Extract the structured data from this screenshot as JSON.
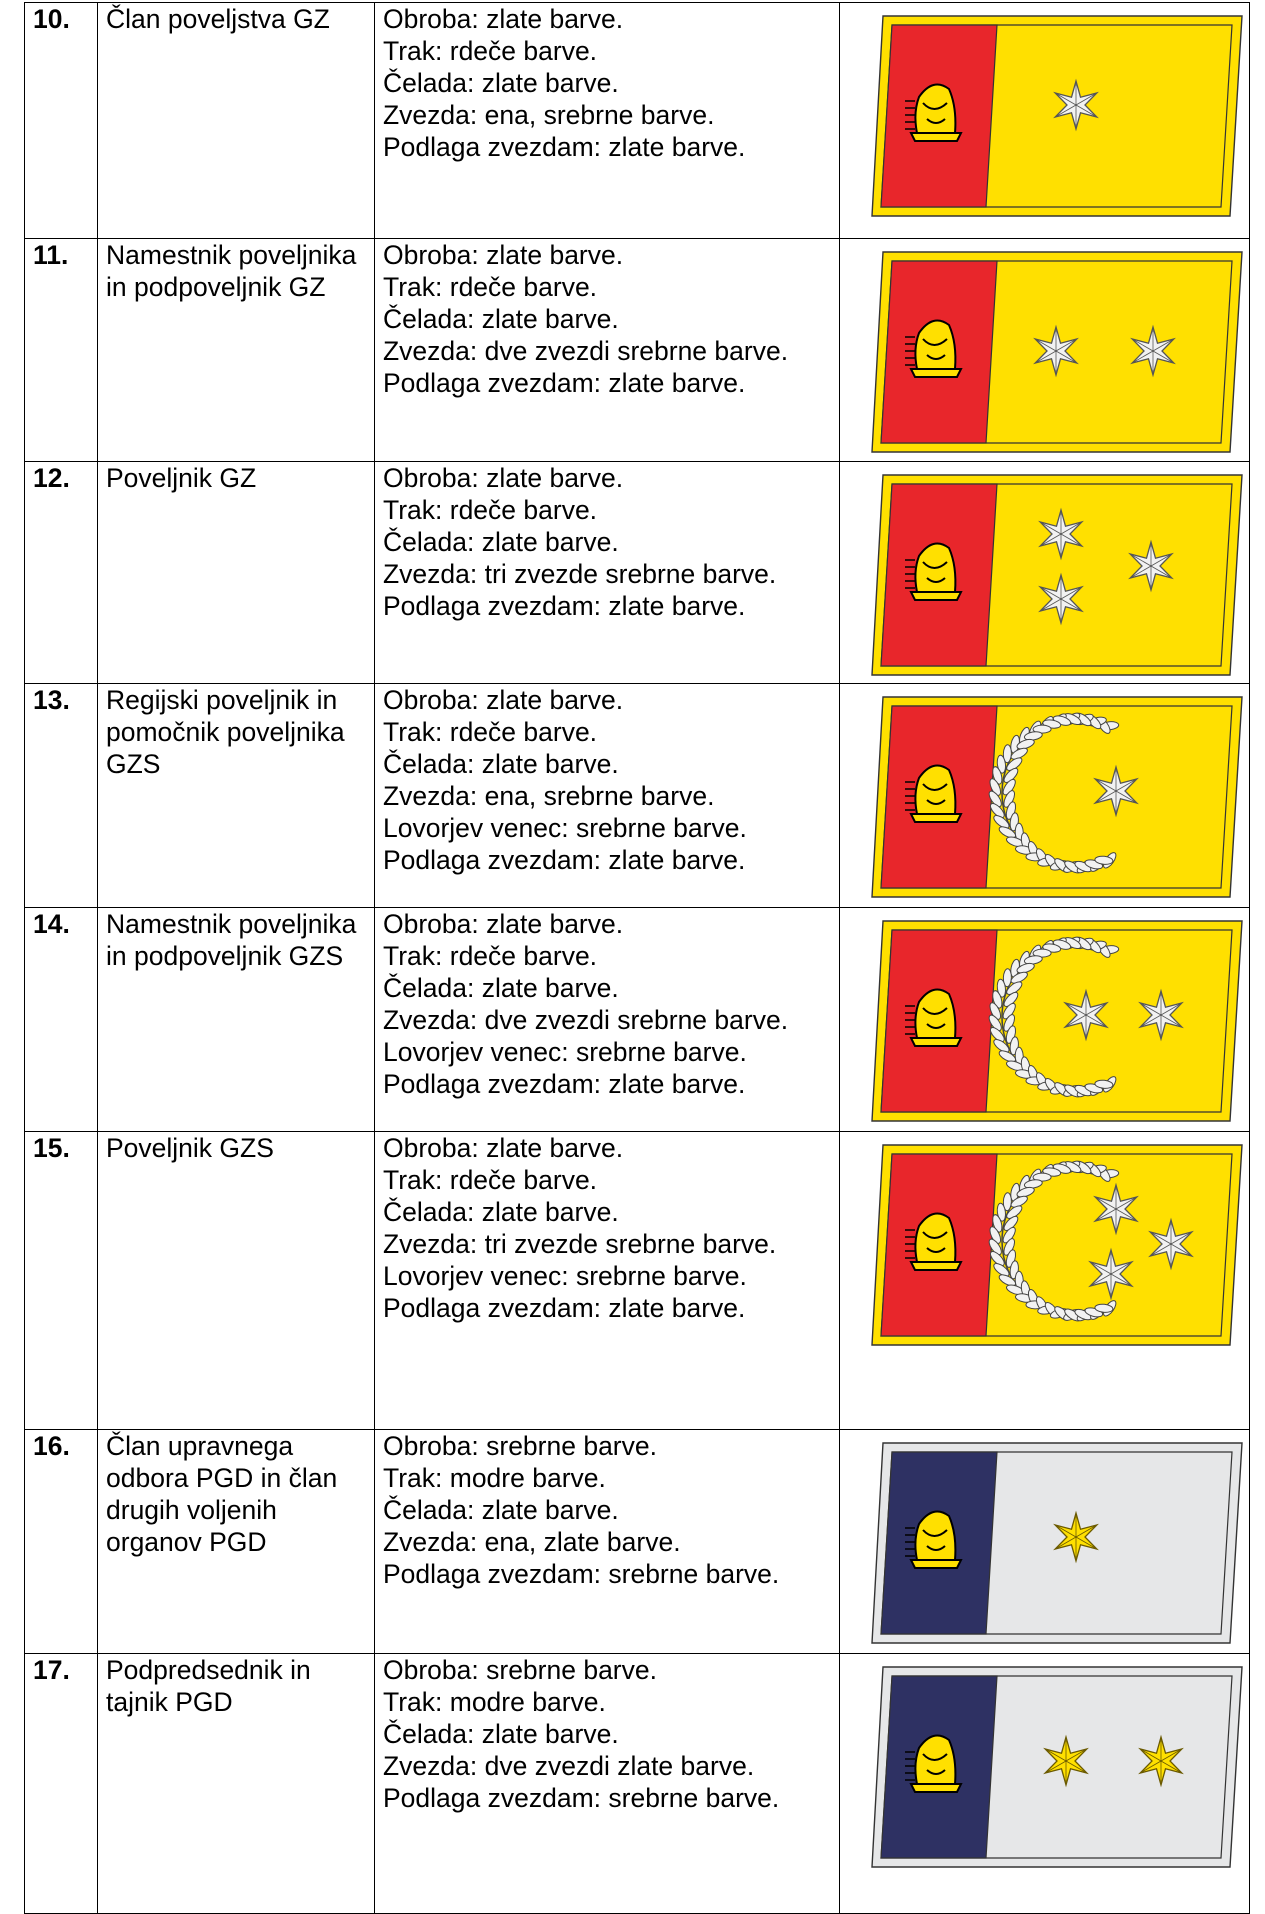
{
  "table": {
    "rows": [
      {
        "number": "10.",
        "name": "Član poveljstva GZ",
        "description": [
          "Obroba: zlate barve.",
          "Trak: rdeče barve.",
          "Čelada: zlate barve.",
          "Zvezda: ena, srebrne barve.",
          "Podlaga zvezdam: zlate barve."
        ]
      },
      {
        "number": "11.",
        "name": "Namestnik poveljnika in podpoveljnik GZ",
        "description": [
          "Obroba: zlate barve.",
          "Trak: rdeče barve.",
          "Čelada: zlate barve.",
          "Zvezda: dve zvezdi srebrne barve.",
          "Podlaga zvezdam: zlate barve."
        ]
      },
      {
        "number": "12.",
        "name": "Poveljnik GZ",
        "description": [
          "Obroba: zlate barve.",
          "Trak: rdeče barve.",
          "Čelada: zlate barve.",
          "Zvezda: tri zvezde srebrne barve.",
          "Podlaga zvezdam: zlate barve."
        ]
      },
      {
        "number": "13.",
        "name": "Regijski poveljnik in pomočnik poveljnika GZS",
        "description": [
          "Obroba: zlate barve.",
          "Trak: rdeče barve.",
          "Čelada: zlate barve.",
          "Zvezda: ena, srebrne barve.",
          "Lovorjev venec: srebrne barve.",
          "Podlaga zvezdam: zlate barve."
        ]
      },
      {
        "number": "14.",
        "name": "Namestnik poveljnika in podpoveljnik GZS",
        "description": [
          "Obroba: zlate barve.",
          "Trak: rdeče barve.",
          "Čelada: zlate barve.",
          "Zvezda: dve zvezdi srebrne barve.",
          "Lovorjev venec: srebrne barve.",
          "Podlaga zvezdam: zlate barve."
        ]
      },
      {
        "number": "15.",
        "name": "Poveljnik GZS",
        "description": [
          "Obroba: zlate barve.",
          "Trak: rdeče barve.",
          "Čelada: zlate barve.",
          "Zvezda: tri zvezde srebrne barve.",
          "Lovorjev venec: srebrne barve.",
          "Podlaga zvezdam: zlate barve."
        ]
      },
      {
        "number": "16.",
        "name": "Član upravnega odbora PGD in član drugih voljenih organov PGD",
        "description": [
          "Obroba: srebrne barve.",
          "Trak: modre barve.",
          "Čelada: zlate barve.",
          "Zvezda: ena, zlate barve.",
          "Podlaga zvezdam: srebrne barve."
        ]
      },
      {
        "number": "17.",
        "name": "Podpredsednik in tajnik PGD",
        "description": [
          "Obroba: srebrne barve.",
          "Trak: modre barve.",
          "Čelada: zlate barve.",
          "Zvezda: dve zvezdi zlate barve.",
          "Podlaga zvezdam: srebrne barve."
        ]
      }
    ]
  }
}
